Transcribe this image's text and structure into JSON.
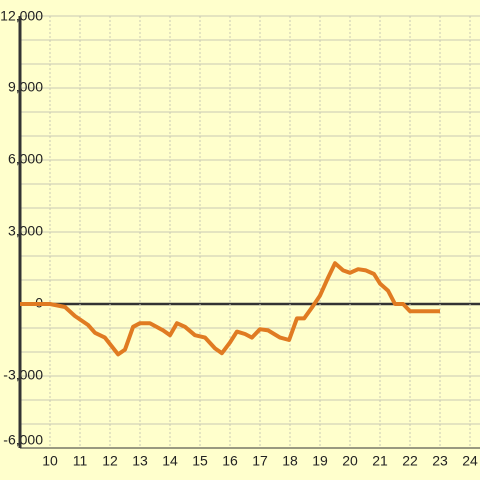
{
  "chart_data": {
    "type": "line",
    "x": [
      9.0,
      10.0,
      10.5,
      10.83,
      11.27,
      11.5,
      11.83,
      12.27,
      12.5,
      12.77,
      13.0,
      13.33,
      13.77,
      14.0,
      14.23,
      14.5,
      14.83,
      15.17,
      15.5,
      15.73,
      16.0,
      16.23,
      16.5,
      16.73,
      17.0,
      17.27,
      17.67,
      17.97,
      18.23,
      18.47,
      18.73,
      19.0,
      19.27,
      19.5,
      19.77,
      20.0,
      20.27,
      20.53,
      20.8,
      21.0,
      21.27,
      21.5,
      21.77,
      22.0,
      22.33,
      23.0
    ],
    "series": [
      {
        "color": "#e07b22",
        "values": [
          0,
          0,
          -125,
          -500,
          -875,
          -1200,
          -1400,
          -2100,
          -1900,
          -950,
          -800,
          -800,
          -1100,
          -1300,
          -800,
          -950,
          -1300,
          -1400,
          -1850,
          -2050,
          -1600,
          -1150,
          -1250,
          -1400,
          -1050,
          -1100,
          -1400,
          -1500,
          -600,
          -600,
          -150,
          350,
          1100,
          1700,
          1400,
          1300,
          1450,
          1400,
          1250,
          850,
          550,
          0,
          0,
          -300,
          -300,
          -300
        ]
      }
    ],
    "xlim": [
      9,
      24.333
    ],
    "xticks": [
      10,
      11,
      12,
      13,
      14,
      15,
      16,
      17,
      18,
      19,
      20,
      21,
      22,
      23,
      24
    ],
    "ylim": [
      -6000,
      12000
    ],
    "yticks": [
      {
        "value": -6000,
        "label": "-6,000"
      },
      {
        "value": -3000,
        "label": "-3,000"
      },
      0,
      {
        "value": 3000,
        "label": "3,000"
      },
      {
        "value": 6000,
        "label": "6,000"
      },
      {
        "value": 9000,
        "label": "9,000"
      },
      {
        "value": 12000,
        "label": "12,000"
      }
    ],
    "y_minor_ticks": [
      -5000,
      -4000,
      -2000,
      -1000,
      1000,
      2000,
      4000,
      5000,
      7000,
      8000,
      10000,
      11000
    ],
    "grid": true
  }
}
